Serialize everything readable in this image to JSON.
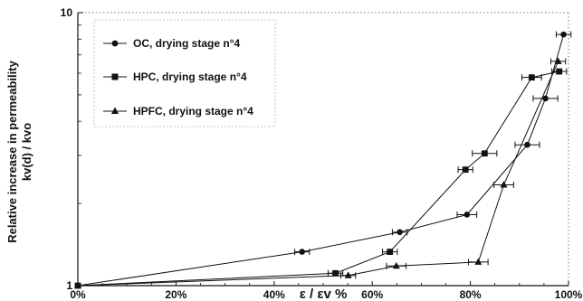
{
  "chart_data": {
    "type": "scatter",
    "title": "",
    "ylabel_line1": "Relative increase in permeability",
    "ylabel_line2": "kv(d) / kvo",
    "xlabel": "ε / εv %",
    "x_scale": "linear",
    "y_scale": "log",
    "xlim": [
      0,
      100
    ],
    "ylim": [
      1,
      10
    ],
    "x_ticks": [
      0,
      20,
      40,
      60,
      80,
      100
    ],
    "x_tick_labels": [
      "0%",
      "20%",
      "40%",
      "60%",
      "80%",
      "100%"
    ],
    "y_ticks": [
      1,
      10
    ],
    "y_tick_labels": [
      "1",
      "10"
    ],
    "grid": false,
    "legend_position": "top-left",
    "series": [
      {
        "name": "OC, drying stage n°4",
        "marker": "circle",
        "x": [
          0,
          45.7,
          65.6,
          79.3,
          91.6,
          95.3,
          99.0
        ],
        "y": [
          1.0,
          1.33,
          1.57,
          1.82,
          3.28,
          4.85,
          8.32
        ],
        "xerr": [
          0,
          1.5,
          1.5,
          2.0,
          2.5,
          2.5,
          1.5
        ]
      },
      {
        "name": "HPC, drying stage n°4",
        "marker": "square",
        "x": [
          0,
          52.5,
          63.6,
          79.0,
          82.9,
          92.5,
          98.1
        ],
        "y": [
          1.0,
          1.11,
          1.33,
          2.66,
          3.05,
          5.79,
          6.09
        ],
        "xerr": [
          0,
          1.5,
          1.5,
          1.5,
          2.5,
          2.0,
          1.5
        ]
      },
      {
        "name": "HPFC, drying stage n°4",
        "marker": "triangle",
        "x": [
          0,
          55.1,
          64.9,
          81.6,
          86.8,
          97.9
        ],
        "y": [
          1.0,
          1.09,
          1.18,
          1.22,
          2.34,
          6.63
        ],
        "xerr": [
          0,
          1.5,
          2.0,
          2.0,
          2.0,
          1.5
        ]
      }
    ]
  }
}
